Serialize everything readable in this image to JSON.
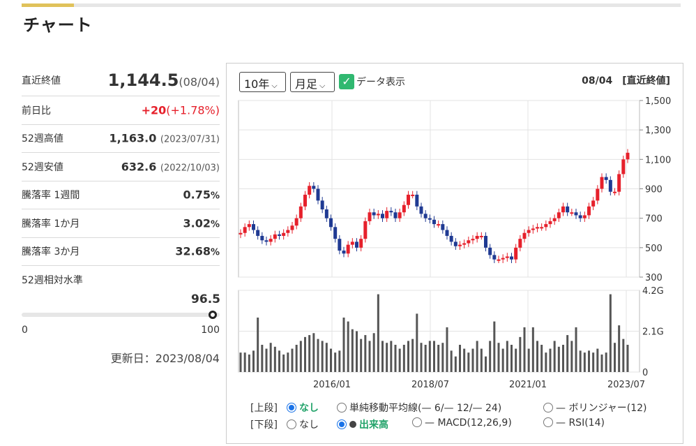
{
  "page_title": "チャート",
  "stats": {
    "latest_label": "直近終値",
    "latest_value": "1,144.5",
    "latest_date": "(08/04)",
    "change_label": "前日比",
    "change_value": "+20",
    "change_pct": "(+1.78%)",
    "high52_label": "52週高値",
    "high52_value": "1,163.0",
    "high52_date": "(2023/07/31)",
    "low52_label": "52週安値",
    "low52_value": "632.6",
    "low52_date": "(2022/10/03)",
    "w1_label": "騰落率 1週間",
    "w1_value": "0.75",
    "m1_label": "騰落率 1か月",
    "m1_value": "3.02",
    "m3_label": "騰落率 3か月",
    "m3_value": "32.68",
    "pct_sign": "%",
    "relative_label": "52週相対水準"
  },
  "gauge": {
    "value": 96.5,
    "value_text": "96.5",
    "min": "0",
    "max": "100"
  },
  "updated": "更新日：2023/08/04",
  "controls": {
    "period": "10年",
    "interval": "月足",
    "data_display": "データ表示",
    "asof_date": "08/04",
    "asof_label": "[直近終値]"
  },
  "options": {
    "upper_label": "[上段]",
    "lower_label": "[下段]",
    "none": "なし",
    "sma": "単純移動平均線(— 6/— 12/— 24)",
    "bollinger": "— ボリンジャー(12)",
    "volume": "出来高",
    "macd": "— MACD(12,26,9)",
    "rsi": "— RSI(14)"
  },
  "colors": {
    "up": "#e6202b",
    "down": "#1f3a93",
    "volume": "#555555",
    "accent": "#30b870"
  },
  "chart_data": {
    "type": "candlestick",
    "x_ticks": [
      "2016/01",
      "2018/07",
      "2021/01",
      "2023/07"
    ],
    "price_ylim": [
      300,
      1500
    ],
    "price_ticks": [
      "1,500",
      "1,300",
      "1,100",
      "900",
      "700",
      "500",
      "300"
    ],
    "volume_ticks": [
      "4.2G",
      "2.1G",
      "0"
    ],
    "volume_max": 4.2,
    "closes": [
      600,
      640,
      660,
      620,
      580,
      550,
      540,
      560,
      590,
      580,
      600,
      620,
      650,
      700,
      780,
      860,
      920,
      900,
      820,
      760,
      700,
      640,
      560,
      480,
      460,
      520,
      540,
      500,
      560,
      680,
      740,
      720,
      730,
      700,
      750,
      740,
      700,
      740,
      790,
      860,
      860,
      780,
      730,
      700,
      690,
      660,
      660,
      620,
      580,
      540,
      510,
      520,
      530,
      550,
      560,
      580,
      580,
      500,
      450,
      420,
      420,
      430,
      440,
      420,
      500,
      560,
      600,
      620,
      630,
      640,
      640,
      660,
      680,
      700,
      740,
      780,
      740,
      740,
      720,
      700,
      720,
      780,
      820,
      900,
      980,
      960,
      880,
      880,
      1000,
      1100,
      1145
    ],
    "volumes": [
      1.0,
      1.0,
      0.9,
      1.1,
      2.8,
      1.4,
      1.2,
      1.5,
      1.3,
      1.1,
      0.9,
      1.0,
      1.2,
      1.4,
      1.6,
      1.8,
      1.9,
      2.0,
      1.7,
      1.6,
      1.5,
      1.2,
      1.0,
      1.1,
      2.8,
      2.6,
      2.2,
      2.1,
      1.7,
      1.9,
      1.6,
      2.0,
      4.0,
      1.6,
      1.5,
      1.6,
      1.4,
      1.2,
      1.4,
      1.6,
      1.7,
      3.0,
      1.5,
      1.4,
      1.6,
      1.6,
      1.4,
      1.5,
      2.3,
      1.1,
      0.8,
      1.4,
      1.2,
      1.0,
      1.2,
      1.6,
      1.2,
      0.8,
      1.6,
      2.6,
      1.5,
      1.2,
      1.6,
      1.4,
      1.2,
      1.8,
      2.3,
      1.2,
      2.3,
      1.6,
      1.4,
      1.0,
      1.2,
      1.6,
      1.3,
      1.4,
      1.9,
      1.6,
      2.3,
      1.1,
      1.0,
      1.1,
      1.0,
      1.2,
      0.9,
      1.0,
      4.0,
      1.5,
      2.4,
      1.7,
      1.4
    ]
  }
}
